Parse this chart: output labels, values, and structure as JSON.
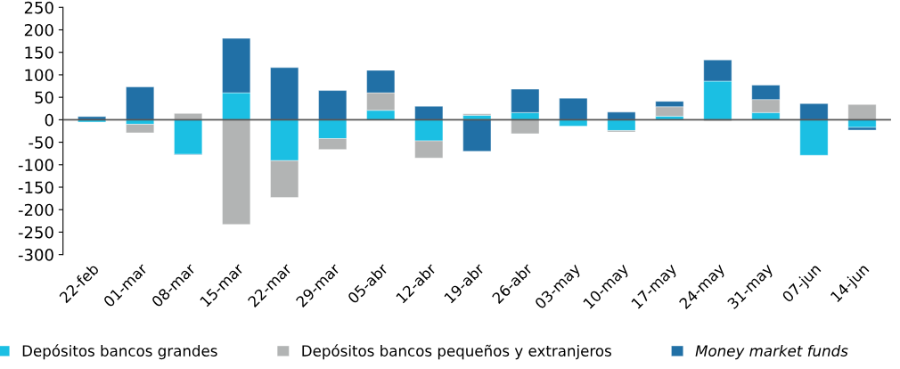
{
  "chart_data": {
    "type": "bar",
    "stacked": true,
    "categories": [
      "22-feb",
      "01-mar",
      "08-mar",
      "15-mar",
      "22-mar",
      "29-mar",
      "05-abr",
      "12-abr",
      "19-abr",
      "26-abr",
      "03-may",
      "10-may",
      "17-may",
      "24-may",
      "31-may",
      "07-jun",
      "14-jun"
    ],
    "series": [
      {
        "name": "Depósitos bancos grandes",
        "color": "#1bbfe3",
        "values": [
          -5,
          -10,
          -77,
          60,
          -91,
          -42,
          21,
          -47,
          10,
          16,
          -14,
          -24,
          8,
          86,
          16,
          -79,
          -17
        ]
      },
      {
        "name": "Depósitos bancos pequeños y extranjeros",
        "color": "#b2b4b4",
        "values": [
          0,
          -19,
          14,
          -233,
          -82,
          -24,
          39,
          -38,
          3,
          -31,
          0,
          -3,
          21,
          -3,
          29,
          null,
          34
        ]
      },
      {
        "name": "Money market funds",
        "color": "#2170a6",
        "values": [
          7,
          73,
          -1,
          121,
          116,
          65,
          50,
          30,
          -70,
          52,
          48,
          17,
          12,
          47,
          32,
          36,
          -6
        ]
      }
    ],
    "ylim": [
      -300,
      250
    ],
    "yticks": [
      -300,
      -250,
      -200,
      -150,
      -100,
      -50,
      0,
      50,
      100,
      150,
      200,
      250
    ],
    "ref_lines": [
      {
        "axis": "y",
        "value": 0,
        "color": "#555555"
      }
    ],
    "legend": "bottom"
  }
}
